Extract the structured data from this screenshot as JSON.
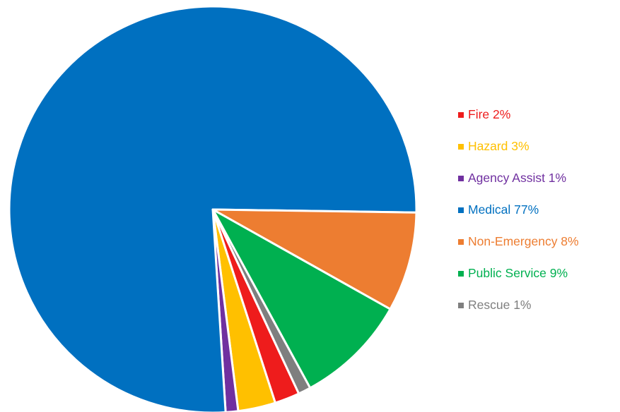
{
  "chart_data": {
    "type": "pie",
    "title": "",
    "start_angle_deg": 155,
    "direction": "clockwise",
    "legend_position": "right",
    "slices": [
      {
        "label": "Fire 2%",
        "category": "Fire",
        "value": 2,
        "color": "#ee1c1c"
      },
      {
        "label": "Hazard 3%",
        "category": "Hazard",
        "value": 3,
        "color": "#ffc000"
      },
      {
        "label": "Agency Assist 1%",
        "category": "Agency Assist",
        "value": 1,
        "color": "#7030a0"
      },
      {
        "label": "Medical 77%",
        "category": "Medical",
        "value": 77,
        "color": "#0070c0"
      },
      {
        "label": "Non-Emergency 8%",
        "category": "Non-Emergency",
        "value": 8,
        "color": "#ed7d31"
      },
      {
        "label": "Public Service 9%",
        "category": "Public Service",
        "value": 9,
        "color": "#00b050"
      },
      {
        "label": "Rescue 1%",
        "category": "Rescue",
        "value": 1,
        "color": "#7f7f7f"
      }
    ]
  }
}
